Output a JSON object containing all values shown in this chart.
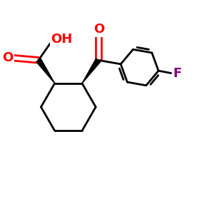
{
  "bg_color": "#ffffff",
  "bond_color": "#000000",
  "bond_width": 2.0,
  "atom_colors": {
    "O_red": "#ff0000",
    "F_purple": "#800080",
    "C_black": "#000000"
  },
  "font_size_atom": 13,
  "xlim": [
    -1.0,
    3.5
  ],
  "ylim": [
    -1.8,
    2.0
  ]
}
